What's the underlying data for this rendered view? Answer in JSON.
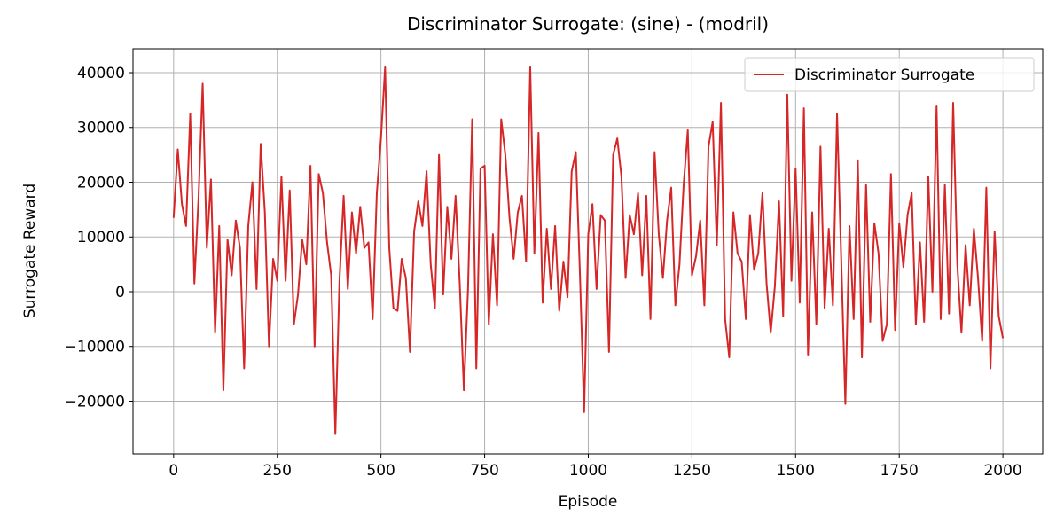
{
  "chart_data": {
    "type": "line",
    "title": "Discriminator Surrogate: (sine) - (modril)",
    "x_label": "Episode",
    "y_label": "Surrogate Reward",
    "xlim": [
      -98,
      2096
    ],
    "ylim": [
      -29636,
      44372
    ],
    "xticks": [
      0,
      250,
      500,
      750,
      1000,
      1250,
      1500,
      1750,
      2000
    ],
    "yticks": [
      {
        "value": -20000,
        "label": "−20000"
      },
      {
        "value": -10000,
        "label": "−10000"
      },
      0,
      10000,
      20000,
      30000,
      40000
    ],
    "grid": true,
    "legend": "upper right",
    "x": [
      0,
      10,
      20,
      30,
      40,
      50,
      60,
      70,
      80,
      90,
      100,
      110,
      120,
      130,
      140,
      150,
      160,
      170,
      180,
      190,
      200,
      210,
      220,
      230,
      240,
      250,
      260,
      270,
      280,
      290,
      300,
      310,
      320,
      330,
      340,
      350,
      360,
      370,
      380,
      390,
      400,
      410,
      420,
      430,
      440,
      450,
      460,
      470,
      480,
      490,
      500,
      510,
      520,
      530,
      540,
      550,
      560,
      570,
      580,
      590,
      600,
      610,
      620,
      630,
      640,
      650,
      660,
      670,
      680,
      690,
      700,
      710,
      720,
      730,
      740,
      750,
      760,
      770,
      780,
      790,
      800,
      810,
      820,
      830,
      840,
      850,
      860,
      870,
      880,
      890,
      900,
      910,
      920,
      930,
      940,
      950,
      960,
      970,
      980,
      990,
      1000,
      1010,
      1020,
      1030,
      1040,
      1050,
      1060,
      1070,
      1080,
      1090,
      1100,
      1110,
      1120,
      1130,
      1140,
      1150,
      1160,
      1170,
      1180,
      1190,
      1200,
      1210,
      1220,
      1230,
      1240,
      1250,
      1260,
      1270,
      1280,
      1290,
      1300,
      1310,
      1320,
      1330,
      1340,
      1350,
      1360,
      1370,
      1380,
      1390,
      1400,
      1410,
      1420,
      1430,
      1440,
      1450,
      1460,
      1470,
      1480,
      1490,
      1500,
      1510,
      1520,
      1530,
      1540,
      1550,
      1560,
      1570,
      1580,
      1590,
      1600,
      1610,
      1620,
      1630,
      1640,
      1650,
      1660,
      1670,
      1680,
      1690,
      1700,
      1710,
      1720,
      1730,
      1740,
      1750,
      1760,
      1770,
      1780,
      1790,
      1800,
      1810,
      1820,
      1830,
      1840,
      1850,
      1860,
      1870,
      1880,
      1890,
      1900,
      1910,
      1920,
      1930,
      1940,
      1950,
      1960,
      1970,
      1980,
      1990,
      2000
    ],
    "series": [
      {
        "name": "Discriminator Surrogate",
        "color": "#d62728",
        "values": [
          13500,
          26000,
          16000,
          12000,
          32500,
          1500,
          17000,
          38000,
          8000,
          20500,
          -7500,
          12000,
          -18000,
          9500,
          3000,
          13000,
          8000,
          -14000,
          12000,
          20000,
          500,
          27000,
          14500,
          -10000,
          6000,
          2000,
          21000,
          2000,
          18500,
          -6000,
          -500,
          9500,
          5000,
          23000,
          -10000,
          21500,
          18000,
          9000,
          3000,
          -26000,
          2000,
          17500,
          500,
          14500,
          7000,
          15500,
          8000,
          9000,
          -5000,
          18000,
          28000,
          41000,
          8000,
          -3000,
          -3500,
          6000,
          2500,
          -11000,
          11000,
          16500,
          12000,
          22000,
          5000,
          -3000,
          25000,
          -500,
          15500,
          6000,
          17500,
          1500,
          -18000,
          500,
          31500,
          -14000,
          22500,
          23000,
          -6000,
          10500,
          -2500,
          31500,
          25000,
          13500,
          6000,
          14500,
          17500,
          5500,
          41000,
          7000,
          29000,
          -2000,
          11500,
          500,
          12000,
          -3500,
          5500,
          -1000,
          22000,
          25500,
          3000,
          -22000,
          10500,
          16000,
          500,
          14000,
          13000,
          -11000,
          25000,
          28000,
          21000,
          2500,
          14000,
          10500,
          18000,
          3000,
          17500,
          -5000,
          25500,
          10500,
          2500,
          13000,
          19000,
          -2500,
          5000,
          19500,
          29500,
          3000,
          6500,
          13000,
          -2500,
          26500,
          31000,
          8500,
          34500,
          -5000,
          -12000,
          14500,
          7000,
          5500,
          -5000,
          14000,
          4000,
          7000,
          18000,
          1500,
          -7500,
          1000,
          16500,
          -4500,
          36000,
          2000,
          22500,
          -2000,
          33500,
          -11500,
          14500,
          -6000,
          26500,
          -3000,
          11500,
          -2500,
          32500,
          6000,
          -20500,
          12000,
          -5000,
          24000,
          -12000,
          19500,
          -5500,
          12500,
          7000,
          -9000,
          -6000,
          21500,
          -7000,
          12500,
          4500,
          14000,
          18000,
          -6000,
          9000,
          -5500,
          21000,
          0,
          34000,
          -5000,
          19500,
          -4000,
          34500,
          5000,
          -7500,
          8500,
          -2500,
          11500,
          2500,
          -9000,
          19000,
          -14000,
          11000,
          -4500,
          -8500
        ]
      }
    ]
  }
}
